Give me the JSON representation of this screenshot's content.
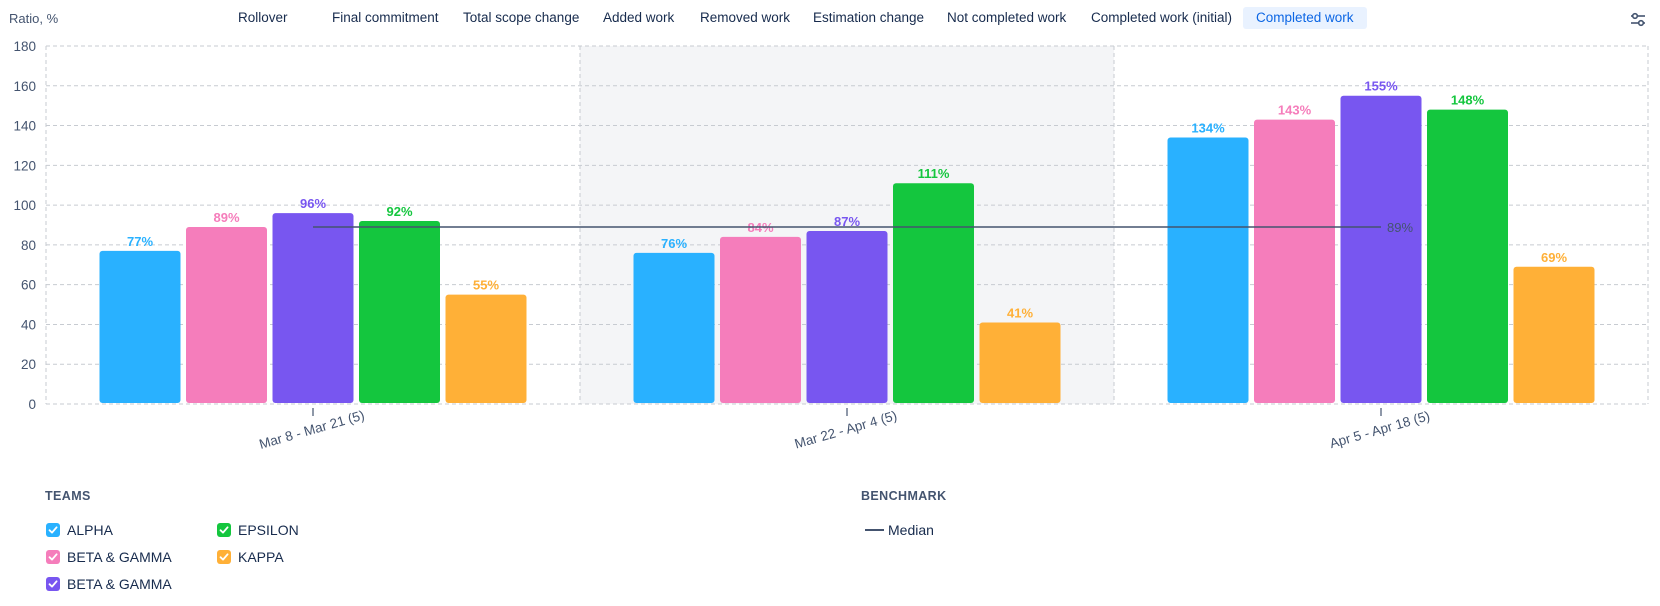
{
  "y_axis_label": "Ratio, %",
  "tabs": [
    {
      "label": "Rollover",
      "selected": false
    },
    {
      "label": "Final commitment",
      "selected": false
    },
    {
      "label": "Total scope change",
      "selected": false
    },
    {
      "label": "Added work",
      "selected": false
    },
    {
      "label": "Removed work",
      "selected": false
    },
    {
      "label": "Estimation change",
      "selected": false
    },
    {
      "label": "Not completed work",
      "selected": false
    },
    {
      "label": "Completed work (initial)",
      "selected": false
    },
    {
      "label": "Completed work",
      "selected": true
    }
  ],
  "icons": {
    "settings": "sliders-icon",
    "check": "check-icon"
  },
  "legend": {
    "teams_title": "TEAMS",
    "benchmark_title": "BENCHMARK",
    "median_label": "Median"
  },
  "chart_data": {
    "type": "bar",
    "title": "",
    "xlabel": "",
    "ylabel": "Ratio, %",
    "ylim": [
      0,
      180
    ],
    "yticks": [
      0,
      20,
      40,
      60,
      80,
      100,
      120,
      140,
      160,
      180
    ],
    "grid": true,
    "categories": [
      "Mar 8 - Mar 21 (5)",
      "Mar 22 - Apr 4 (5)",
      "Apr 5 - Apr 18 (5)"
    ],
    "highlighted_category": "Mar 22 - Apr 4 (5)",
    "series": [
      {
        "name": "ALPHA",
        "color": "#29b1ff",
        "checked": true,
        "values": [
          77,
          76,
          134
        ],
        "labels": [
          "77%",
          "76%",
          "134%"
        ]
      },
      {
        "name": "BETA & GAMMA",
        "color": "#f57dbb",
        "checked": true,
        "values": [
          89,
          84,
          143
        ],
        "labels": [
          "89%",
          "84%",
          "143%"
        ]
      },
      {
        "name": "BETA & GAMMA",
        "color": "#7856f0",
        "checked": true,
        "values": [
          96,
          87,
          155
        ],
        "labels": [
          "96%",
          "87%",
          "155%"
        ]
      },
      {
        "name": "EPSILON",
        "color": "#14c63e",
        "checked": true,
        "values": [
          92,
          111,
          148
        ],
        "labels": [
          "92%",
          "111%",
          "148%"
        ]
      },
      {
        "name": "KAPPA",
        "color": "#ffb037",
        "checked": true,
        "values": [
          55,
          41,
          69
        ],
        "labels": [
          "55%",
          "41%",
          "69%"
        ]
      }
    ],
    "benchmark": {
      "name": "Median",
      "value": 89,
      "label": "89%",
      "color": "#44546f"
    },
    "legend_placement": "bottom"
  }
}
